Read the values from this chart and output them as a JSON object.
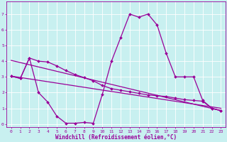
{
  "xlabel": "Windchill (Refroidissement éolien,°C)",
  "bg_color": "#c8f0f0",
  "line_color": "#990099",
  "grid_color": "#ffffff",
  "xlim": [
    -0.5,
    23.5
  ],
  "ylim": [
    -0.2,
    7.8
  ],
  "xticks": [
    0,
    1,
    2,
    3,
    4,
    5,
    6,
    7,
    8,
    9,
    10,
    11,
    12,
    13,
    14,
    15,
    16,
    17,
    18,
    19,
    20,
    21,
    22,
    23
  ],
  "yticks": [
    0,
    1,
    2,
    3,
    4,
    5,
    6,
    7
  ],
  "line1_x": [
    0,
    1,
    2,
    3,
    4,
    5,
    6,
    7,
    8,
    9,
    10,
    11,
    12,
    13,
    14,
    15,
    16,
    17,
    18,
    19,
    20,
    21,
    22,
    23
  ],
  "line1_y": [
    3.05,
    2.9,
    4.2,
    4.0,
    3.95,
    3.7,
    3.4,
    3.15,
    2.95,
    2.75,
    2.45,
    2.25,
    2.15,
    2.05,
    1.95,
    1.85,
    1.8,
    1.75,
    1.65,
    1.55,
    1.5,
    1.45,
    1.0,
    0.85
  ],
  "line2_x": [
    0,
    1,
    2,
    3,
    4,
    5,
    6,
    7,
    8,
    9,
    10,
    11,
    12,
    13,
    14,
    15,
    16,
    17,
    18,
    19,
    20,
    21,
    22,
    23
  ],
  "line2_y": [
    3.05,
    2.9,
    4.2,
    2.0,
    1.4,
    0.5,
    0.05,
    0.05,
    0.1,
    0.05,
    1.9,
    4.0,
    5.5,
    7.0,
    6.8,
    7.0,
    6.3,
    4.5,
    3.0,
    3.0,
    3.0,
    1.5,
    1.0,
    0.85
  ],
  "line3_x": [
    0,
    23
  ],
  "line3_y": [
    3.05,
    1.0
  ],
  "line4_x": [
    0,
    23
  ],
  "line4_y": [
    4.05,
    0.85
  ],
  "marker": "D",
  "markersize": 2.0,
  "linewidth": 0.9,
  "tick_fontsize": 4.5,
  "label_fontsize": 5.5
}
